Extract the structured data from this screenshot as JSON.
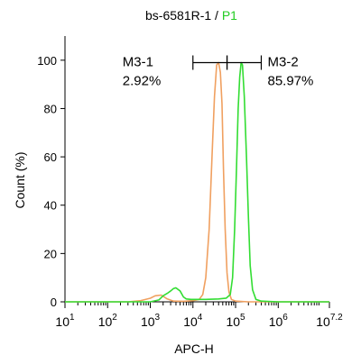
{
  "chart_data": {
    "type": "line",
    "title": {
      "prefix": "bs-6581R-1 / ",
      "highlight": "P1",
      "highlight_color": "#22cc22"
    },
    "xlabel": "APC-H",
    "ylabel": "Count  (%)",
    "x_scale": "log10",
    "xlim": [
      10,
      15848931.9
    ],
    "ylim": [
      0,
      110
    ],
    "x_ticks": [
      {
        "base": "10",
        "exp": "1",
        "value": 10
      },
      {
        "base": "10",
        "exp": "2",
        "value": 100
      },
      {
        "base": "10",
        "exp": "3",
        "value": 1000
      },
      {
        "base": "10",
        "exp": "4",
        "value": 10000
      },
      {
        "base": "10",
        "exp": "5",
        "value": 100000
      },
      {
        "base": "10",
        "exp": "6",
        "value": 1000000
      },
      {
        "base": "10",
        "exp": "7.2",
        "value": 15848931.9
      }
    ],
    "y_ticks": [
      {
        "label": "0",
        "value": 0
      },
      {
        "label": "20",
        "value": 20
      },
      {
        "label": "40",
        "value": 40
      },
      {
        "label": "60",
        "value": 60
      },
      {
        "label": "80",
        "value": 80
      },
      {
        "label": "100",
        "value": 100
      }
    ],
    "series": [
      {
        "color": "#f0a060",
        "points": [
          [
            10,
            0
          ],
          [
            300,
            0
          ],
          [
            600,
            0.5
          ],
          [
            1000,
            1.5
          ],
          [
            1300,
            2.5
          ],
          [
            1800,
            2.8
          ],
          [
            2500,
            1.2
          ],
          [
            3500,
            0.3
          ],
          [
            6000,
            0.2
          ],
          [
            10000,
            0.5
          ],
          [
            14000,
            1
          ],
          [
            17000,
            3
          ],
          [
            20000,
            10
          ],
          [
            24000,
            30
          ],
          [
            28000,
            60
          ],
          [
            32000,
            85
          ],
          [
            36000,
            98
          ],
          [
            40000,
            99
          ],
          [
            44000,
            95
          ],
          [
            48000,
            82
          ],
          [
            52000,
            55
          ],
          [
            57000,
            30
          ],
          [
            63000,
            12
          ],
          [
            70000,
            4
          ],
          [
            80000,
            1
          ],
          [
            100000,
            0.3
          ],
          [
            200000,
            0
          ],
          [
            15848931.9,
            0
          ]
        ]
      },
      {
        "color": "#33dd33",
        "points": [
          [
            10,
            0
          ],
          [
            1000,
            0
          ],
          [
            1600,
            0.8
          ],
          [
            2000,
            2.5
          ],
          [
            2500,
            3.5
          ],
          [
            3000,
            4.5
          ],
          [
            3500,
            5.5
          ],
          [
            4000,
            5.8
          ],
          [
            5000,
            4.5
          ],
          [
            6000,
            2
          ],
          [
            7000,
            1.2
          ],
          [
            9000,
            1
          ],
          [
            20000,
            1
          ],
          [
            40000,
            1.2
          ],
          [
            60000,
            1.5
          ],
          [
            75000,
            3
          ],
          [
            85000,
            10
          ],
          [
            95000,
            30
          ],
          [
            105000,
            55
          ],
          [
            115000,
            80
          ],
          [
            125000,
            93
          ],
          [
            135000,
            99
          ],
          [
            145000,
            98
          ],
          [
            160000,
            85
          ],
          [
            180000,
            60
          ],
          [
            200000,
            35
          ],
          [
            220000,
            15
          ],
          [
            250000,
            5
          ],
          [
            300000,
            1
          ],
          [
            400000,
            0.3
          ],
          [
            1000000,
            0
          ],
          [
            15848931.9,
            0
          ]
        ]
      }
    ],
    "markers": [
      {
        "label": "M3-1",
        "value": "2.92%",
        "x_range": [
          10000,
          63000
        ],
        "y": 99
      },
      {
        "label": "M3-2",
        "value": "85.97%",
        "x_range": [
          63000,
          400000
        ],
        "y": 99
      }
    ]
  }
}
